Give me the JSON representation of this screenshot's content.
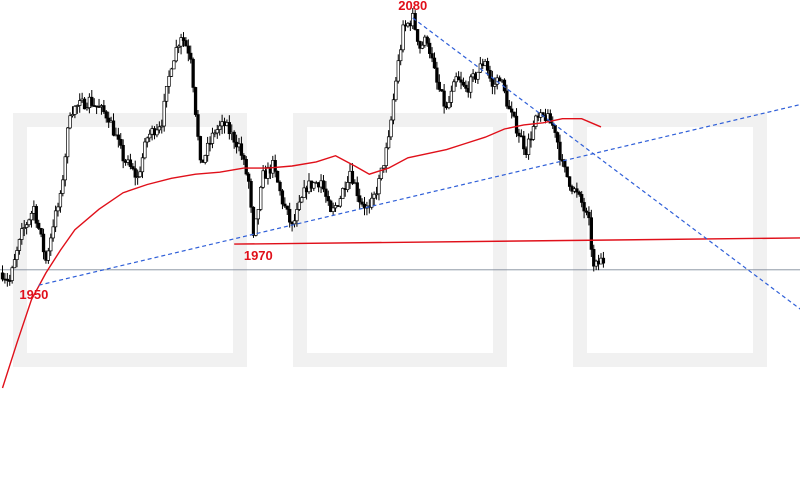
{
  "chart_data": {
    "type": "candlestick",
    "title": "",
    "xlabel": "",
    "ylabel": "",
    "colors": {
      "candle": "#000000",
      "moving_average": "#e0101a",
      "support_line": "#e0101a",
      "trend_lines": "#2f5fd8",
      "label": "#e0101a",
      "price_line": "#7f8a99"
    },
    "grid": false,
    "legend": "none",
    "annotations": [
      {
        "text": "2080",
        "price": 2080
      },
      {
        "text": "1970",
        "price": 1970
      },
      {
        "text": "1950",
        "price": 1950
      }
    ],
    "waypoints": [
      [
        0,
        1956
      ],
      [
        3,
        1952
      ],
      [
        8,
        1975
      ],
      [
        13,
        1988
      ],
      [
        18,
        1962
      ],
      [
        21,
        1980
      ],
      [
        24,
        1992
      ],
      [
        28,
        2035
      ],
      [
        36,
        2040
      ],
      [
        44,
        2032
      ],
      [
        50,
        2012
      ],
      [
        56,
        2002
      ],
      [
        60,
        2022
      ],
      [
        66,
        2030
      ],
      [
        70,
        2058
      ],
      [
        74,
        2072
      ],
      [
        78,
        2062
      ],
      [
        82,
        2008
      ],
      [
        88,
        2025
      ],
      [
        92,
        2028
      ],
      [
        98,
        2018
      ],
      [
        102,
        2000
      ],
      [
        104,
        1972
      ],
      [
        108,
        2003
      ],
      [
        112,
        2008
      ],
      [
        116,
        1991
      ],
      [
        120,
        1978
      ],
      [
        126,
        1998
      ],
      [
        132,
        2001
      ],
      [
        136,
        1984
      ],
      [
        140,
        1993
      ],
      [
        144,
        2006
      ],
      [
        148,
        1992
      ],
      [
        152,
        1986
      ],
      [
        156,
        2000
      ],
      [
        160,
        2020
      ],
      [
        163,
        2050
      ],
      [
        166,
        2074
      ],
      [
        170,
        2080
      ],
      [
        173,
        2066
      ],
      [
        176,
        2070
      ],
      [
        180,
        2048
      ],
      [
        184,
        2035
      ],
      [
        188,
        2050
      ],
      [
        192,
        2045
      ],
      [
        196,
        2052
      ],
      [
        200,
        2060
      ],
      [
        203,
        2046
      ],
      [
        206,
        2052
      ],
      [
        210,
        2035
      ],
      [
        214,
        2024
      ],
      [
        217,
        2016
      ],
      [
        221,
        2030
      ],
      [
        225,
        2032
      ],
      [
        229,
        2026
      ],
      [
        232,
        2008
      ],
      [
        236,
        1998
      ],
      [
        240,
        1990
      ],
      [
        243,
        1980
      ],
      [
        245,
        1958
      ],
      [
        248,
        1962
      ]
    ],
    "moving_average": [
      [
        0,
        1900
      ],
      [
        6,
        1922
      ],
      [
        12,
        1943
      ],
      [
        18,
        1956
      ],
      [
        24,
        1967
      ],
      [
        30,
        1977
      ],
      [
        40,
        1987
      ],
      [
        50,
        1995
      ],
      [
        60,
        1999
      ],
      [
        70,
        2002
      ],
      [
        80,
        2004
      ],
      [
        90,
        2005
      ],
      [
        100,
        2007
      ],
      [
        110,
        2007
      ],
      [
        120,
        2008
      ],
      [
        130,
        2010
      ],
      [
        138,
        2013
      ],
      [
        146,
        2008
      ],
      [
        152,
        2004
      ],
      [
        160,
        2007
      ],
      [
        168,
        2012
      ],
      [
        176,
        2014
      ],
      [
        184,
        2016
      ],
      [
        192,
        2019
      ],
      [
        200,
        2022
      ],
      [
        208,
        2026
      ],
      [
        216,
        2028
      ],
      [
        224,
        2029
      ],
      [
        232,
        2031
      ],
      [
        240,
        2031
      ],
      [
        248,
        2027
      ]
    ],
    "horizontal_line": {
      "price": 1957.5
    },
    "support_line": {
      "from": [
        96,
        1970
      ],
      "to": [
        331,
        1973
      ]
    },
    "trend_lines": [
      {
        "from": [
          15,
          1950
        ],
        "to": [
          331,
          2038
        ]
      },
      {
        "from": [
          170,
          2080
        ],
        "to": [
          331,
          1938
        ]
      }
    ],
    "x_bars": 332,
    "candles_shown": 250,
    "ylim": [
      1900,
      2080
    ]
  }
}
